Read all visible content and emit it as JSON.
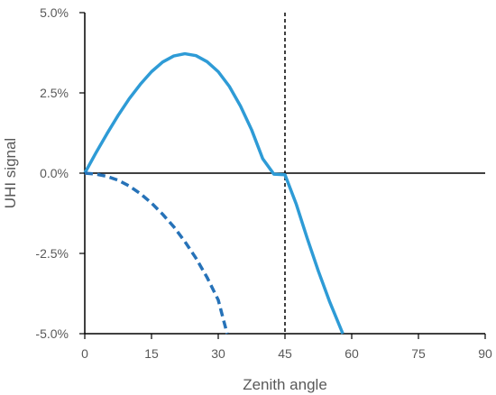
{
  "chart_data": {
    "type": "line",
    "title": "",
    "xlabel": "Zenith angle",
    "ylabel": "UHI signal",
    "xlim": [
      0,
      90
    ],
    "ylim": [
      -0.05,
      0.05
    ],
    "x_ticks": [
      0,
      15,
      30,
      45,
      60,
      75,
      90
    ],
    "x_tick_labels": [
      "0",
      "15",
      "30",
      "45",
      "60",
      "75",
      "90"
    ],
    "y_ticks": [
      -0.05,
      -0.025,
      0,
      0.025,
      0.05
    ],
    "y_tick_labels": [
      "-5.0%",
      "-2.5%",
      "0.0%",
      "2.5%",
      "5.0%"
    ],
    "grid": false,
    "reference_lines": [
      {
        "orientation": "vertical",
        "x": 45,
        "style": "dashed",
        "color": "#000000"
      },
      {
        "orientation": "horizontal",
        "y": 0,
        "style": "solid",
        "color": "#000000"
      }
    ],
    "series": [
      {
        "style": "solid",
        "color": "#2E9BD6",
        "x": [
          0,
          2.5,
          5,
          7.5,
          10,
          12.5,
          15,
          17.5,
          20,
          22.5,
          25,
          27.5,
          30,
          32.5,
          35,
          37.5,
          40,
          42.5,
          45,
          47.5,
          50,
          52.5,
          55,
          58
        ],
        "y": [
          0.0,
          0.0063,
          0.0123,
          0.018,
          0.0232,
          0.0277,
          0.0316,
          0.0346,
          0.0365,
          0.0372,
          0.0366,
          0.0347,
          0.0316,
          0.027,
          0.0209,
          0.0135,
          0.0045,
          -0.0003,
          -0.0005,
          -0.0095,
          -0.0203,
          -0.0305,
          -0.0399,
          -0.05
        ]
      },
      {
        "style": "dashed",
        "color": "#2672B8",
        "x": [
          0,
          2.5,
          5,
          7.5,
          10,
          12.5,
          15,
          17.5,
          20,
          22.5,
          25,
          27.5,
          30,
          32
        ],
        "y": [
          0.0,
          -0.0003,
          -0.001,
          -0.0022,
          -0.004,
          -0.0064,
          -0.0093,
          -0.0128,
          -0.0167,
          -0.0213,
          -0.0265,
          -0.0325,
          -0.0395,
          -0.05
        ]
      }
    ]
  }
}
